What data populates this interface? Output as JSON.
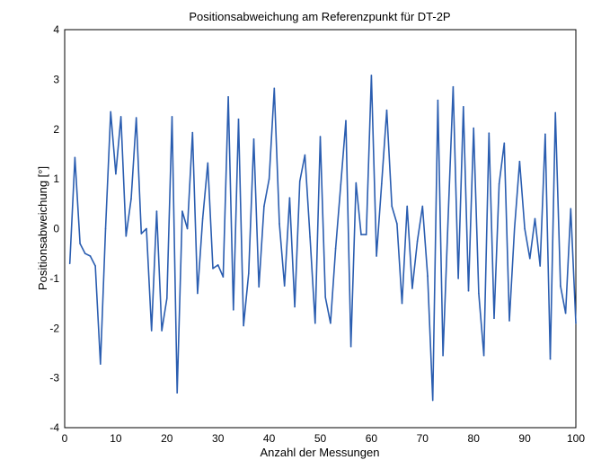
{
  "chart_data": {
    "type": "line",
    "title": "Positionsabweichung am Referenzpunkt für DT-2P",
    "xlabel": "Anzahl der Messungen",
    "ylabel": "Positionsabweichung [°]",
    "xlim": [
      0,
      100
    ],
    "ylim": [
      -4,
      4
    ],
    "xticks": [
      0,
      10,
      20,
      30,
      40,
      50,
      60,
      70,
      80,
      90,
      100
    ],
    "yticks": [
      -4,
      -3,
      -2,
      -1,
      0,
      1,
      2,
      3,
      4
    ],
    "grid": false,
    "line_color": "#2a5db0",
    "series": [
      {
        "x": [
          1,
          2,
          3,
          4,
          5,
          6,
          7,
          8,
          9,
          10,
          11,
          12,
          13,
          14,
          15,
          16,
          17,
          18,
          19,
          20,
          21,
          22,
          23,
          24,
          25,
          26,
          27,
          28,
          29,
          30,
          31,
          32,
          33,
          34,
          35,
          36,
          37,
          38,
          39,
          40,
          41,
          42,
          43,
          44,
          45,
          46,
          47,
          48,
          49,
          50,
          51,
          52,
          53,
          54,
          55,
          56,
          57,
          58,
          59,
          60,
          61,
          62,
          63,
          64,
          65,
          66,
          67,
          68,
          69,
          70,
          71,
          72,
          73,
          74,
          75,
          76,
          77,
          78,
          79,
          80,
          81,
          82,
          83,
          84,
          85,
          86,
          87,
          88,
          89,
          90,
          91,
          92,
          93,
          94,
          95,
          96,
          97,
          98,
          99,
          100
        ],
        "values": [
          -0.7,
          1.43,
          -0.3,
          -0.5,
          -0.55,
          -0.75,
          -2.72,
          0.0,
          2.35,
          1.1,
          2.25,
          -0.15,
          0.6,
          2.23,
          -0.1,
          0.0,
          -2.05,
          0.35,
          -2.05,
          -1.4,
          2.25,
          -3.3,
          0.35,
          0.0,
          1.93,
          -1.3,
          0.2,
          1.32,
          -0.8,
          -0.73,
          -0.97,
          2.65,
          -1.63,
          2.2,
          -1.95,
          -0.9,
          1.8,
          -1.17,
          0.45,
          1.0,
          2.82,
          0.1,
          -1.15,
          0.62,
          -1.57,
          0.95,
          1.48,
          -0.17,
          -1.9,
          1.85,
          -1.38,
          -1.9,
          -0.4,
          0.88,
          2.17,
          -2.37,
          0.92,
          -0.12,
          -0.12,
          3.08,
          -0.55,
          0.9,
          2.38,
          0.45,
          0.1,
          -1.5,
          0.45,
          -1.2,
          -0.25,
          0.45,
          -0.95,
          -3.45,
          2.58,
          -2.55,
          0.2,
          2.85,
          -1.0,
          2.45,
          -1.25,
          2.02,
          -1.3,
          -2.55,
          1.92,
          -1.8,
          0.9,
          1.72,
          -1.85,
          0.0,
          1.35,
          0.0,
          -0.6,
          0.2,
          -0.75,
          1.9,
          -2.62,
          2.33,
          -1.15,
          -1.7,
          0.4,
          -1.9
        ]
      }
    ]
  }
}
